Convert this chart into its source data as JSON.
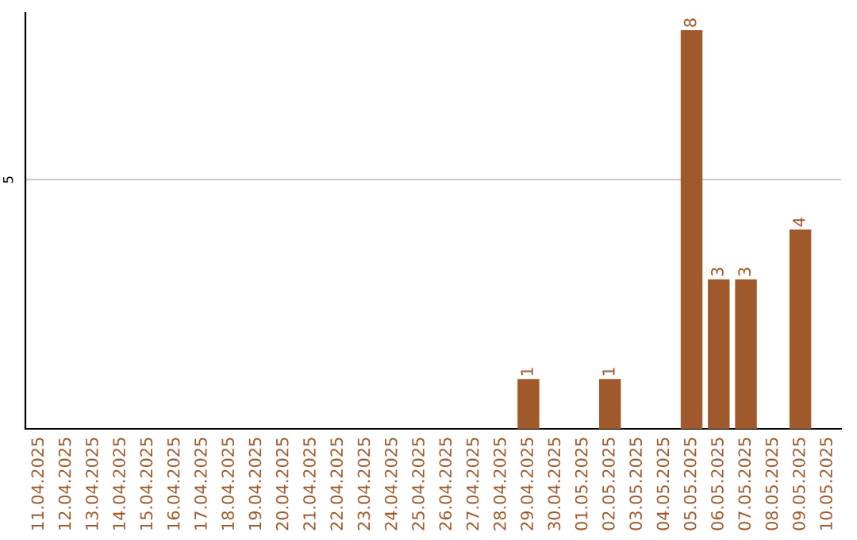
{
  "chart_data": {
    "type": "bar",
    "categories": [
      "11.04.2025",
      "12.04.2025",
      "13.04.2025",
      "14.04.2025",
      "15.04.2025",
      "16.04.2025",
      "17.04.2025",
      "18.04.2025",
      "19.04.2025",
      "20.04.2025",
      "21.04.2025",
      "22.04.2025",
      "23.04.2025",
      "24.04.2025",
      "25.04.2025",
      "26.04.2025",
      "27.04.2025",
      "28.04.2025",
      "29.04.2025",
      "30.04.2025",
      "01.05.2025",
      "02.05.2025",
      "03.05.2025",
      "04.05.2025",
      "05.05.2025",
      "06.05.2025",
      "07.05.2025",
      "08.05.2025",
      "09.05.2025",
      "10.05.2025"
    ],
    "values": [
      null,
      null,
      null,
      null,
      null,
      null,
      null,
      null,
      null,
      null,
      null,
      null,
      null,
      null,
      null,
      null,
      null,
      null,
      1,
      null,
      null,
      1,
      null,
      null,
      8,
      3,
      3,
      null,
      4,
      null
    ],
    "data_labels": true,
    "color": "#a0592b",
    "ylim": [
      0,
      8.35
    ],
    "ref_lines": [
      {
        "axis": "y",
        "value": 5,
        "label": "5",
        "color": "#cccccc"
      }
    ]
  }
}
